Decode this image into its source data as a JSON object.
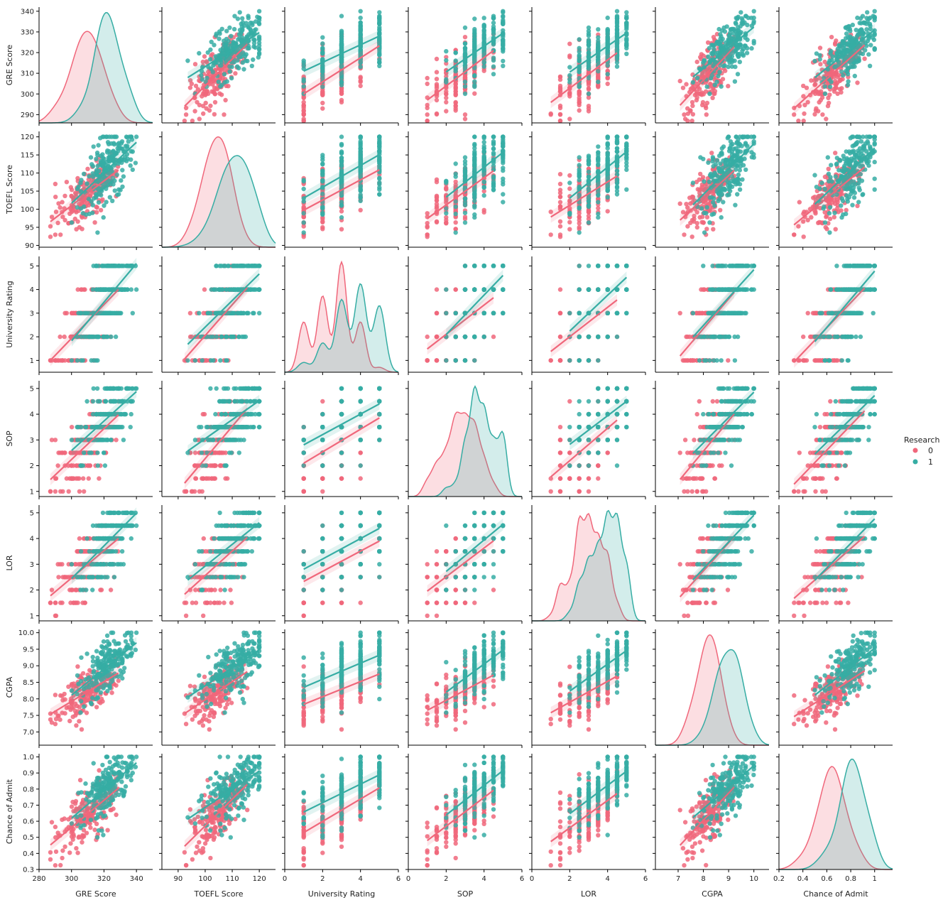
{
  "chart_data": {
    "type": "scatter",
    "layout": "pairplot",
    "hue": {
      "title": "Research",
      "levels": [
        {
          "name": "0",
          "color": "#F0677B"
        },
        {
          "name": "1",
          "color": "#36ADA4"
        }
      ]
    },
    "diagonal": "kde",
    "offdiagonal": "scatter with linear regression fit and confidence band",
    "variables": [
      {
        "name": "GRE Score",
        "range": [
          280,
          350
        ],
        "ticks": [
          280,
          300,
          320,
          340
        ],
        "ylim": [
          286,
          342
        ],
        "yticks": [
          290,
          300,
          310,
          320,
          330,
          340
        ],
        "type": "cont",
        "mean": [
          309,
          322
        ],
        "sd": [
          9,
          8
        ]
      },
      {
        "name": "TOEFL Score",
        "range": [
          84,
          126
        ],
        "ticks": [
          90,
          100,
          110,
          120
        ],
        "ylim": [
          89.5,
          121.5
        ],
        "yticks": [
          90,
          95,
          100,
          105,
          110,
          115,
          120
        ],
        "type": "cont",
        "mean": [
          104,
          111
        ],
        "sd": [
          5,
          6
        ]
      },
      {
        "name": "University Rating",
        "range": [
          0,
          6
        ],
        "ticks": [
          0,
          2,
          4,
          6
        ],
        "ylim": [
          0.5,
          5.4
        ],
        "yticks": [
          1,
          2,
          3,
          4,
          5
        ],
        "type": "disc",
        "levels": [
          1,
          2,
          3,
          4,
          5
        ],
        "mean": [
          2.5,
          3.6
        ],
        "sd": [
          1.0,
          1.1
        ]
      },
      {
        "name": "SOP",
        "range": [
          0,
          6
        ],
        "ticks": [
          0,
          2,
          4,
          6
        ],
        "ylim": [
          0.8,
          5.3
        ],
        "yticks": [
          1,
          2,
          3,
          4,
          5
        ],
        "type": "disc",
        "levels": [
          1,
          1.5,
          2,
          2.5,
          3,
          3.5,
          4,
          4.5,
          5
        ],
        "mean": [
          2.8,
          3.8
        ],
        "sd": [
          0.9,
          0.8
        ]
      },
      {
        "name": "LOR",
        "range": [
          0,
          6
        ],
        "ticks": [
          0,
          2,
          4,
          6
        ],
        "ylim": [
          0.8,
          5.3
        ],
        "yticks": [
          1,
          2,
          3,
          4,
          5
        ],
        "type": "disc",
        "levels": [
          1,
          1.5,
          2,
          2.5,
          3,
          3.5,
          4,
          4.5,
          5
        ],
        "mean": [
          3.0,
          3.8
        ],
        "sd": [
          0.8,
          0.8
        ]
      },
      {
        "name": "CGPA",
        "range": [
          6.1,
          10.6
        ],
        "ticks": [
          7,
          8,
          9,
          10
        ],
        "ylim": [
          6.6,
          10.1
        ],
        "yticks": [
          7.0,
          7.5,
          8.0,
          8.5,
          9.0,
          9.5,
          10.0
        ],
        "type": "cont",
        "mean": [
          8.25,
          8.95
        ],
        "sd": [
          0.45,
          0.45
        ]
      },
      {
        "name": "Chance of Admit",
        "range": [
          0.2,
          1.15
        ],
        "ticks": [
          0.2,
          0.4,
          0.6,
          0.8,
          1.0
        ],
        "ylim": [
          0.3,
          1.02
        ],
        "yticks": [
          0.3,
          0.4,
          0.5,
          0.6,
          0.7,
          0.8,
          0.9,
          1.0
        ],
        "type": "cont",
        "mean": [
          0.64,
          0.8
        ],
        "sd": [
          0.11,
          0.11
        ]
      }
    ]
  }
}
